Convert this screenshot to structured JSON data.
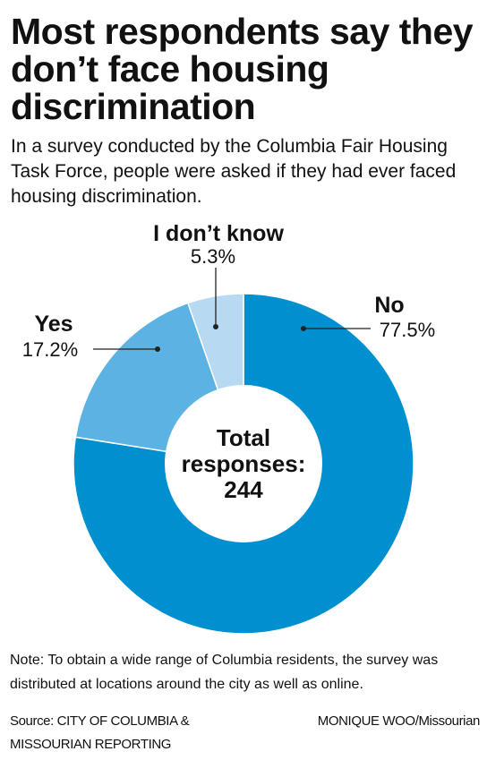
{
  "header": {
    "title": "Most respondents say they don’t face housing discrimination",
    "subtitle": "In a survey conducted by the Columbia Fair Housing Task Force, people were asked if they had ever faced housing discrimination."
  },
  "chart_data": {
    "type": "pie",
    "subtype": "donut",
    "slices": [
      {
        "name": "No",
        "value": 77.5,
        "label": "77.5%",
        "color": "#0090cf"
      },
      {
        "name": "Yes",
        "value": 17.2,
        "label": "17.2%",
        "color": "#5cb3e3"
      },
      {
        "name": "I don’t know",
        "value": 5.3,
        "label": "5.3%",
        "color": "#b7d9f1"
      }
    ],
    "center_text": [
      "Total",
      "responses:",
      "244"
    ],
    "legend": "none"
  },
  "footer": {
    "note": "Note: To obtain a wide range of Columbia residents, the survey was distributed at locations around the city as well as online.",
    "source_line1": "Source: CITY OF COLUMBIA &",
    "source_line2": "MISSOURIAN REPORTING",
    "credit": "MONIQUE WOO/Missourian"
  }
}
